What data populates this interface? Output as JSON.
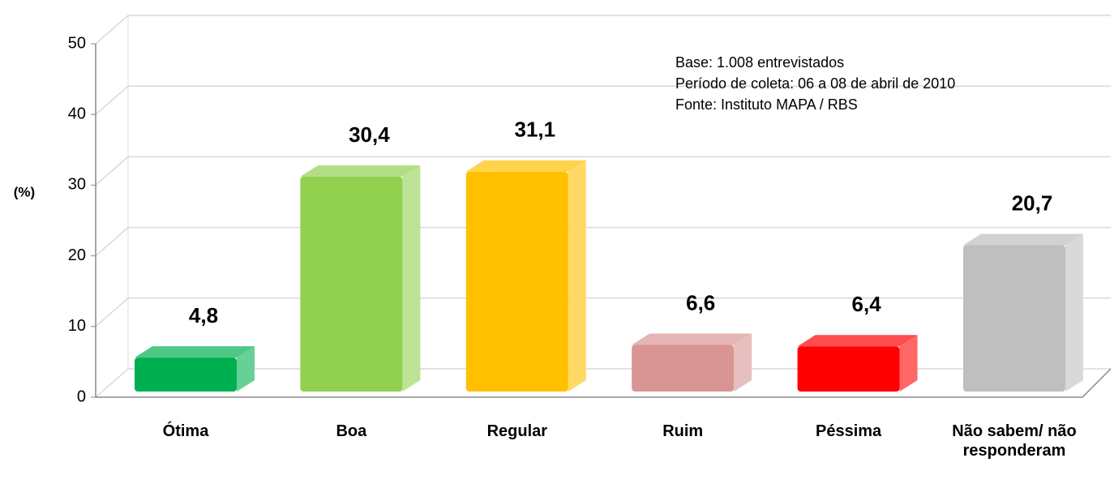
{
  "chart_data": {
    "type": "bar",
    "y_label": "(%)",
    "annotation": [
      "Base: 1.008 entrevistados",
      "Período de coleta: 06 a 08 de abril de 2010",
      "Fonte: Instituto MAPA / RBS"
    ],
    "categories": [
      "Ótima",
      "Boa",
      "Regular",
      "Ruim",
      "Péssima",
      "Não sabem/ não responderam"
    ],
    "values": [
      4.8,
      30.4,
      31.1,
      6.6,
      6.4,
      20.7
    ],
    "value_labels": [
      "4,8",
      "30,4",
      "31,1",
      "6,6",
      "6,4",
      "20,7"
    ],
    "colors": [
      "#00b050",
      "#92d050",
      "#ffc000",
      "#d99594",
      "#ff0000",
      "#bfbfbf"
    ],
    "ylim": [
      0,
      50
    ],
    "yticks": [
      0,
      10,
      20,
      30,
      40,
      50
    ],
    "grid": true
  }
}
